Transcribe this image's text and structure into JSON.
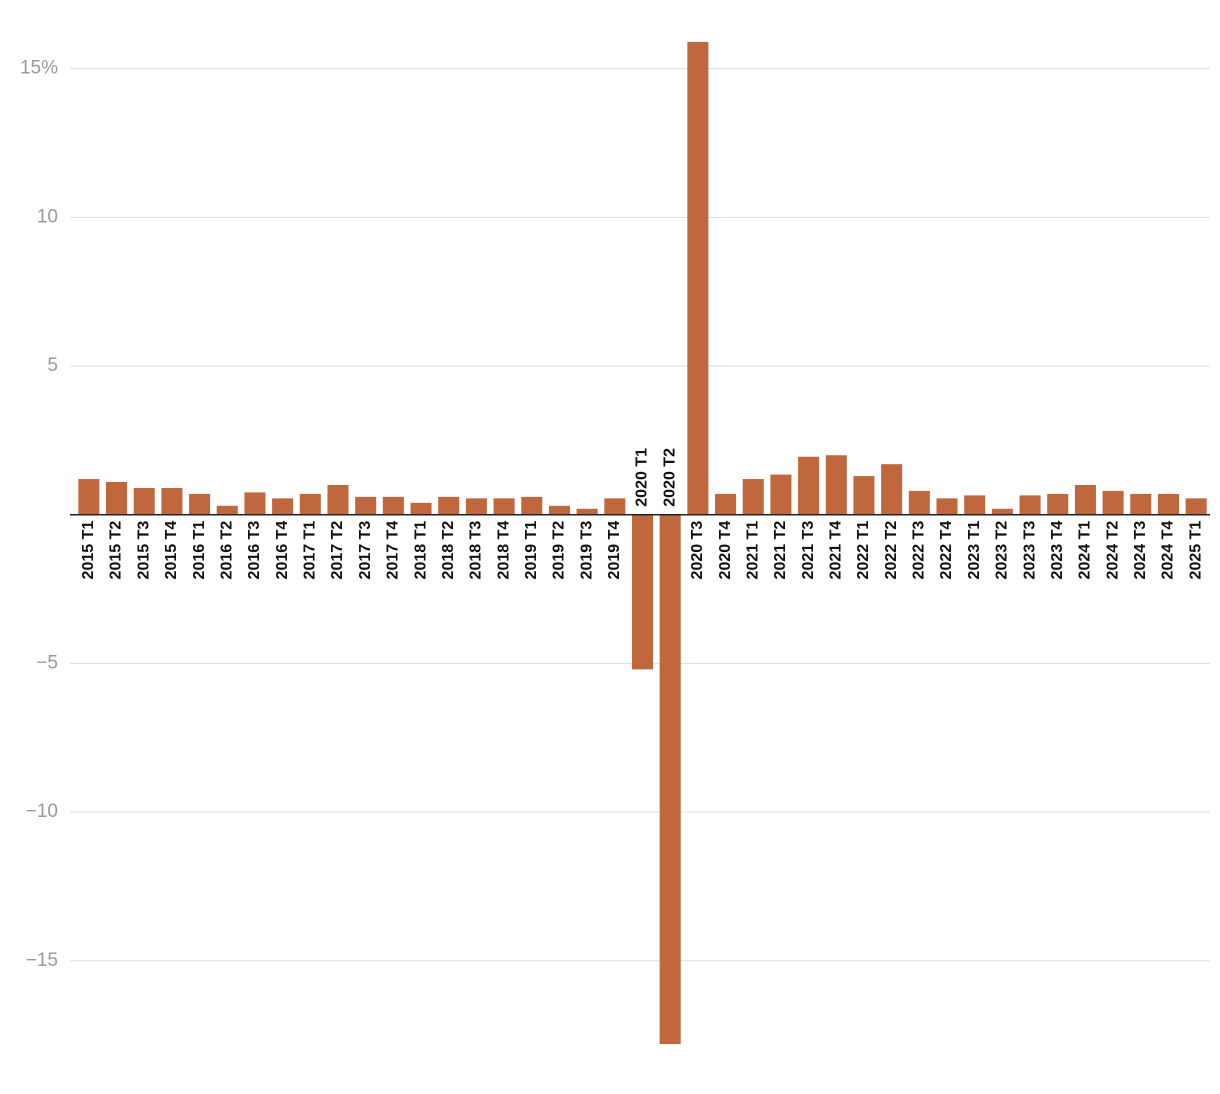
{
  "chart_data": {
    "type": "bar",
    "categories": [
      "2015 T1",
      "2015 T2",
      "2015 T3",
      "2015 T4",
      "2016 T1",
      "2016 T2",
      "2016 T3",
      "2016 T4",
      "2017 T1",
      "2017 T2",
      "2017 T3",
      "2017 T4",
      "2018 T1",
      "2018 T2",
      "2018 T3",
      "2018 T4",
      "2019 T1",
      "2019 T2",
      "2019 T3",
      "2019 T4",
      "2020 T1",
      "2020 T2",
      "2020 T3",
      "2020 T4",
      "2021 T1",
      "2021 T2",
      "2021 T3",
      "2021 T4",
      "2022 T1",
      "2022 T2",
      "2022 T3",
      "2022 T4",
      "2023 T1",
      "2023 T2",
      "2023 T3",
      "2023 T4",
      "2024 T1",
      "2024 T2",
      "2024 T3",
      "2024 T4",
      "2025 T1"
    ],
    "values": [
      1.2,
      1.1,
      0.9,
      0.9,
      0.7,
      0.3,
      0.75,
      0.55,
      0.7,
      1.0,
      0.6,
      0.6,
      0.4,
      0.6,
      0.55,
      0.55,
      0.6,
      0.3,
      0.2,
      0.55,
      -5.2,
      -17.8,
      15.9,
      0.7,
      1.2,
      1.35,
      1.95,
      2.0,
      1.3,
      1.7,
      0.8,
      0.55,
      0.65,
      0.2,
      0.65,
      0.7,
      1.0,
      0.8,
      0.7,
      0.7,
      0.55
    ],
    "color": "#c0673e",
    "ylim": [
      -18,
      16.3
    ],
    "yticks": [
      {
        "value": -15,
        "label": "−15"
      },
      {
        "value": -10,
        "label": "−10"
      },
      {
        "value": -5,
        "label": "−5"
      },
      5,
      10,
      {
        "value": 15,
        "label": "15%"
      }
    ],
    "grid": true
  }
}
